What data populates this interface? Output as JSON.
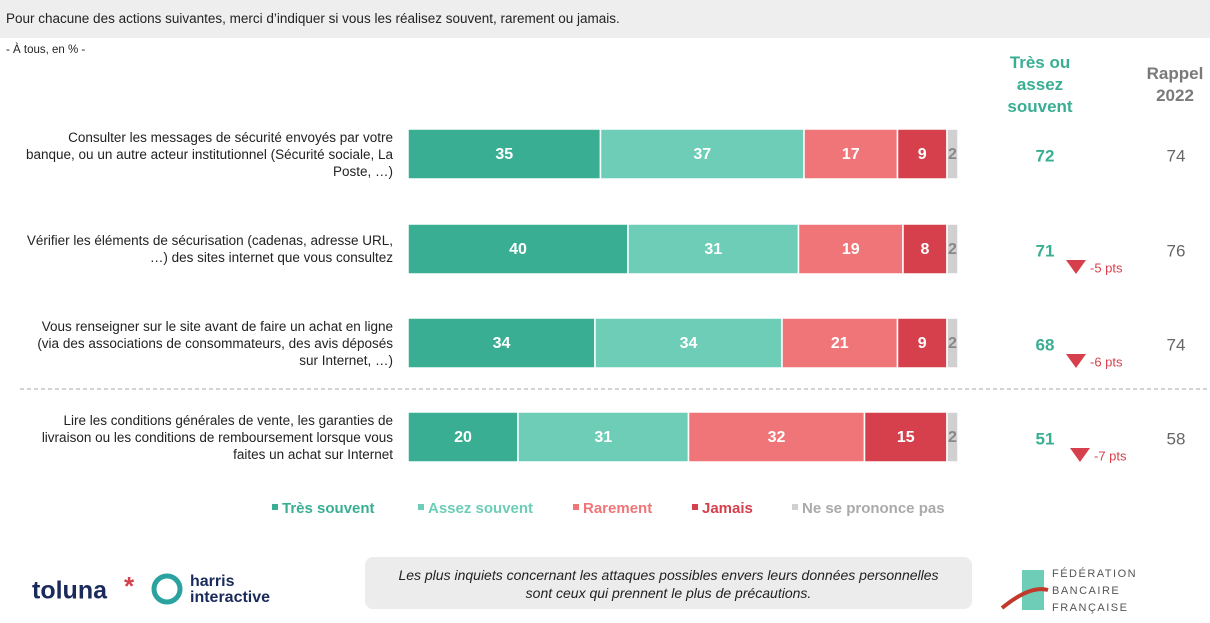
{
  "header": {
    "question": "Pour chacune des actions suivantes, merci d’indiquer si vous les réalisez souvent, rarement ou jamais.",
    "base": "- À tous, en % -"
  },
  "chart_data": {
    "type": "bar",
    "orientation": "horizontal",
    "stacked": true,
    "categories": [
      "Consulter les messages de sécurité envoyés par votre banque, ou un autre acteur institutionnel (Sécurité sociale, La Poste, …)",
      "Vérifier les éléments de sécurisation (cadenas, adresse URL, …) des sites internet que vous consultez",
      "Vous renseigner sur le site avant de faire un achat en ligne (via des associations de consommateurs, des avis déposés sur Internet, …)",
      "Lire les conditions générales de vente, les garanties de livraison ou les conditions de remboursement lorsque vous faites un achat sur Internet"
    ],
    "xlim": [
      0,
      100
    ],
    "series": [
      {
        "name": "Très souvent",
        "color": "#3aae93",
        "values": [
          35,
          40,
          34,
          20
        ]
      },
      {
        "name": "Assez souvent",
        "color": "#6dcdb7",
        "values": [
          37,
          31,
          34,
          31
        ]
      },
      {
        "name": "Rarement",
        "color": "#f07579",
        "values": [
          17,
          19,
          21,
          32
        ]
      },
      {
        "name": "Jamais",
        "color": "#d6404c",
        "values": [
          9,
          8,
          9,
          15
        ]
      },
      {
        "name": "Ne se prononce pas",
        "color": "#d0d0d0",
        "values": [
          2,
          2,
          2,
          2
        ]
      }
    ],
    "total": {
      "title": "Très ou assez souvent",
      "color": "#3aae93",
      "values": [
        72,
        71,
        68,
        51
      ]
    },
    "changes": {
      "color": "#d6404c",
      "values": [
        null,
        -5,
        -6,
        -7
      ],
      "value_labels": [
        null,
        "-5 pts",
        "-6 pts",
        "-7 pts"
      ]
    },
    "recall": {
      "title": "Rappel 2022",
      "values": [
        74,
        76,
        74,
        58
      ]
    }
  },
  "footnote": "Les plus inquiets concernant les attaques possibles envers leurs données personnelles sont ceux qui prennent le plus de précautions.",
  "logos": {
    "toluna": "toluna",
    "harris": "harris",
    "interactive": "interactive",
    "fbf": [
      "FÉDÉRATION",
      "BANCAIRE",
      "FRANÇAISE"
    ]
  }
}
